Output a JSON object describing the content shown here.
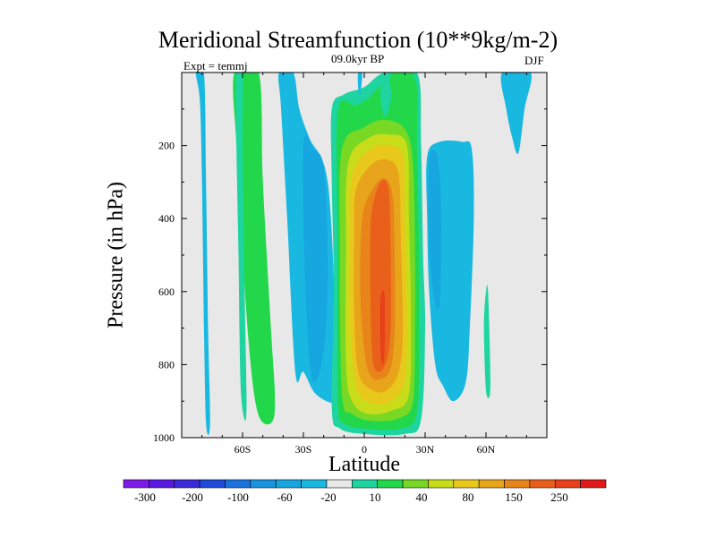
{
  "chart_data": {
    "type": "contour",
    "title": "Meridional Streamfunction (10**9kg/m-2)",
    "left_string": "Expt = temmj",
    "center_string": "09.0kyr BP",
    "right_string": "DJF",
    "xlabel": "Latitude",
    "ylabel": "Pressure (in hPa)",
    "xlim": [
      -90,
      90
    ],
    "ylim": [
      1000,
      0
    ],
    "x_ticks": [
      {
        "value": -60,
        "label": "60S"
      },
      {
        "value": -30,
        "label": "30S"
      },
      {
        "value": 0,
        "label": "0"
      },
      {
        "value": 30,
        "label": "30N"
      },
      {
        "value": 60,
        "label": "60N"
      }
    ],
    "y_ticks": [
      200,
      400,
      600,
      800,
      1000
    ],
    "colorbar": {
      "labels": [
        "-300",
        "-200",
        "-100",
        "-60",
        "-20",
        "10",
        "40",
        "80",
        "150",
        "250"
      ],
      "colors": [
        "#7d1ae8",
        "#5a18e0",
        "#3a2ad8",
        "#1e4ad8",
        "#1a72e0",
        "#1a94e0",
        "#16a6e0",
        "#18b8e0",
        "#e8e8e8",
        "#1ed4a0",
        "#22d84a",
        "#78d824",
        "#c8dc1a",
        "#e8c81a",
        "#e8a41a",
        "#e8841a",
        "#e8601a",
        "#e8401a",
        "#e01a1a"
      ]
    },
    "contours": [
      {
        "name": "neg-cell-80s",
        "color": "#18b8e0",
        "points": [
          [
            -83,
            0
          ],
          [
            -79,
            0
          ],
          [
            -78,
            300
          ],
          [
            -77,
            700
          ],
          [
            -76,
            960
          ],
          [
            -78,
            960
          ],
          [
            -79,
            700
          ],
          [
            -80,
            300
          ],
          [
            -81,
            80
          ]
        ]
      },
      {
        "name": "pos-cell-60s-outer",
        "color": "#22d84a",
        "points": [
          [
            -64,
            0
          ],
          [
            -52,
            0
          ],
          [
            -50,
            300
          ],
          [
            -46,
            700
          ],
          [
            -44,
            900
          ],
          [
            -46,
            960
          ],
          [
            -52,
            940
          ],
          [
            -56,
            800
          ],
          [
            -60,
            500
          ],
          [
            -63,
            200
          ]
        ]
      },
      {
        "name": "pos-cell-60s-inner",
        "color": "#1ed4a0",
        "points": [
          [
            -63,
            0
          ],
          [
            -60,
            0
          ],
          [
            -60,
            200
          ],
          [
            -59,
            600
          ],
          [
            -58,
            900
          ],
          [
            -59,
            950
          ],
          [
            -61,
            850
          ],
          [
            -62,
            500
          ],
          [
            -63,
            200
          ]
        ]
      },
      {
        "name": "neg-cell-30s",
        "color": "#18b8e0",
        "points": [
          [
            -42,
            0
          ],
          [
            -35,
            0
          ],
          [
            -32,
            100
          ],
          [
            -27,
            180
          ],
          [
            -18,
            300
          ],
          [
            -14,
            700
          ],
          [
            -13,
            870
          ],
          [
            -15,
            905
          ],
          [
            -24,
            880
          ],
          [
            -30,
            820
          ],
          [
            -34,
            820
          ],
          [
            -38,
            400
          ],
          [
            -41,
            100
          ]
        ]
      },
      {
        "name": "neg-cell-30s-inner",
        "color": "#16a6e0",
        "points": [
          [
            -30,
            200
          ],
          [
            -25,
            210
          ],
          [
            -20,
            260
          ],
          [
            -18,
            500
          ],
          [
            -19,
            700
          ],
          [
            -22,
            820
          ],
          [
            -26,
            830
          ],
          [
            -29,
            600
          ]
        ]
      },
      {
        "name": "pos-hadley-10",
        "color": "#1ed4a0",
        "points": [
          [
            -16,
            100
          ],
          [
            -10,
            60
          ],
          [
            0,
            40
          ],
          [
            10,
            0
          ],
          [
            26,
            0
          ],
          [
            28,
            200
          ],
          [
            29,
            500
          ],
          [
            30,
            700
          ],
          [
            28,
            950
          ],
          [
            20,
            990
          ],
          [
            0,
            990
          ],
          [
            -12,
            975
          ],
          [
            -16,
            920
          ],
          [
            -15,
            600
          ],
          [
            -16,
            300
          ]
        ]
      },
      {
        "name": "pos-hadley-40",
        "color": "#22d84a",
        "points": [
          [
            -13,
            110
          ],
          [
            -4,
            90
          ],
          [
            2,
            70
          ],
          [
            10,
            30
          ],
          [
            25,
            20
          ],
          [
            26,
            200
          ],
          [
            27,
            500
          ],
          [
            27,
            700
          ],
          [
            26,
            930
          ],
          [
            18,
            975
          ],
          [
            0,
            975
          ],
          [
            -10,
            960
          ],
          [
            -13,
            900
          ],
          [
            -13,
            500
          ]
        ]
      },
      {
        "name": "pos-hadley-80",
        "color": "#78d824",
        "points": [
          [
            -11,
            210
          ],
          [
            0,
            150
          ],
          [
            10,
            130
          ],
          [
            20,
            155
          ],
          [
            24,
            250
          ],
          [
            25,
            500
          ],
          [
            25,
            700
          ],
          [
            24,
            900
          ],
          [
            18,
            945
          ],
          [
            5,
            955
          ],
          [
            -6,
            935
          ],
          [
            -11,
            880
          ],
          [
            -12,
            500
          ]
        ]
      },
      {
        "name": "pos-hadley-120",
        "color": "#c8dc1a",
        "points": [
          [
            -8,
            250
          ],
          [
            2,
            180
          ],
          [
            12,
            170
          ],
          [
            21,
            200
          ],
          [
            22,
            400
          ],
          [
            23,
            650
          ],
          [
            22,
            880
          ],
          [
            14,
            925
          ],
          [
            2,
            935
          ],
          [
            -6,
            900
          ],
          [
            -9,
            800
          ],
          [
            -9,
            500
          ]
        ]
      },
      {
        "name": "pos-hadley-150",
        "color": "#e8c81a",
        "points": [
          [
            -6,
            280
          ],
          [
            3,
            210
          ],
          [
            12,
            200
          ],
          [
            19,
            230
          ],
          [
            20,
            400
          ],
          [
            21,
            650
          ],
          [
            20,
            840
          ],
          [
            13,
            900
          ],
          [
            3,
            905
          ],
          [
            -4,
            860
          ],
          [
            -7,
            700
          ],
          [
            -7,
            450
          ]
        ]
      },
      {
        "name": "pos-hadley-200",
        "color": "#e8a41a",
        "points": [
          [
            -4,
            320
          ],
          [
            4,
            250
          ],
          [
            12,
            240
          ],
          [
            17,
            280
          ],
          [
            18,
            450
          ],
          [
            19,
            700
          ],
          [
            17,
            820
          ],
          [
            11,
            870
          ],
          [
            4,
            870
          ],
          [
            -3,
            820
          ],
          [
            -5,
            650
          ],
          [
            -5,
            450
          ]
        ]
      },
      {
        "name": "pos-hadley-250",
        "color": "#e8841a",
        "points": [
          [
            -1,
            400
          ],
          [
            4,
            320
          ],
          [
            10,
            290
          ],
          [
            14,
            340
          ],
          [
            15,
            500
          ],
          [
            15,
            700
          ],
          [
            13,
            810
          ],
          [
            8,
            840
          ],
          [
            3,
            830
          ],
          [
            0,
            760
          ],
          [
            -2,
            600
          ]
        ]
      },
      {
        "name": "pos-hadley-300",
        "color": "#e8601a",
        "points": [
          [
            4,
            370
          ],
          [
            8,
            300
          ],
          [
            12,
            320
          ],
          [
            13,
            500
          ],
          [
            13,
            700
          ],
          [
            11,
            790
          ],
          [
            7,
            820
          ],
          [
            4,
            780
          ],
          [
            3,
            600
          ],
          [
            3,
            450
          ]
        ]
      },
      {
        "name": "pos-hadley-max",
        "color": "#e8401a",
        "points": [
          [
            8,
            620
          ],
          [
            10,
            610
          ],
          [
            10,
            760
          ],
          [
            9,
            800
          ],
          [
            8,
            760
          ]
        ]
      },
      {
        "name": "pos-nh-upper",
        "color": "#1ed4a0",
        "points": [
          [
            10,
            0
          ],
          [
            14,
            0
          ],
          [
            13,
            80
          ],
          [
            10,
            120
          ],
          [
            8,
            60
          ]
        ]
      },
      {
        "name": "pos-nh-thin",
        "color": "#22d84a",
        "points": [
          [
            14,
            0
          ],
          [
            24,
            0
          ],
          [
            22,
            40
          ],
          [
            16,
            60
          ],
          [
            13,
            40
          ]
        ]
      },
      {
        "name": "neg-cell-45n",
        "color": "#18b8e0",
        "points": [
          [
            31,
            230
          ],
          [
            37,
            190
          ],
          [
            48,
            190
          ],
          [
            53,
            210
          ],
          [
            54,
            400
          ],
          [
            52,
            700
          ],
          [
            50,
            850
          ],
          [
            44,
            900
          ],
          [
            39,
            860
          ],
          [
            35,
            800
          ],
          [
            32,
            600
          ],
          [
            31,
            400
          ]
        ]
      },
      {
        "name": "neg-cell-45n-inner",
        "color": "#16a6e0",
        "points": [
          [
            32,
            240
          ],
          [
            36,
            230
          ],
          [
            38,
            400
          ],
          [
            37,
            640
          ],
          [
            34,
            600
          ],
          [
            32,
            450
          ]
        ]
      },
      {
        "name": "neg-cell-75n",
        "color": "#18b8e0",
        "points": [
          [
            68,
            0
          ],
          [
            82,
            0
          ],
          [
            79,
            100
          ],
          [
            76,
            220
          ],
          [
            73,
            180
          ],
          [
            70,
            100
          ]
        ]
      },
      {
        "name": "pos-cell-60n-thin",
        "color": "#1ed4a0",
        "points": [
          [
            60,
            600
          ],
          [
            61,
            600
          ],
          [
            62,
            780
          ],
          [
            62,
            880
          ],
          [
            60,
            870
          ],
          [
            59,
            700
          ]
        ]
      },
      {
        "name": "neg-top-5s",
        "color": "#18b8e0",
        "points": [
          [
            -3,
            0
          ],
          [
            -1,
            0
          ],
          [
            -2,
            60
          ],
          [
            -3,
            40
          ]
        ]
      }
    ]
  }
}
